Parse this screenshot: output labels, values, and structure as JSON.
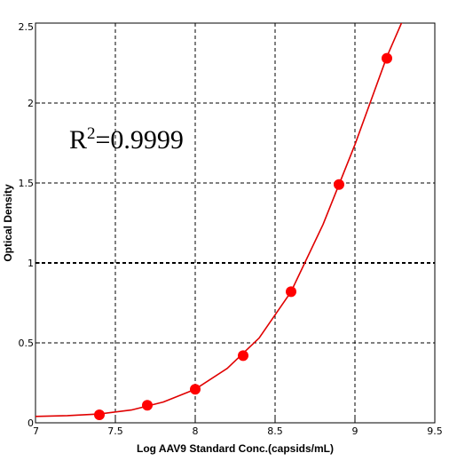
{
  "chart_data": {
    "type": "scatter",
    "xlabel": "Log AAV9 Standard Conc.(capsids/mL)",
    "ylabel": "Optical Density",
    "xlim": [
      7,
      9.5
    ],
    "ylim": [
      0,
      2.5
    ],
    "x_ticks": [
      "7",
      "7.5",
      "8",
      "8.5",
      "9",
      "9.5"
    ],
    "y_ticks": [
      "0",
      "0.5",
      "1",
      "1.5",
      "2",
      "2.5"
    ],
    "grid": true,
    "annotation": {
      "prefix": "R",
      "superscript": "2",
      "suffix": "=0.9999"
    },
    "colors": {
      "points": "#ff0000",
      "fit_line": "#e00000",
      "grid": "#000000"
    },
    "series": [
      {
        "type": "scatter",
        "x": [
          7.4,
          7.7,
          8.0,
          8.3,
          8.6,
          8.9,
          9.2
        ],
        "y": [
          0.05,
          0.11,
          0.21,
          0.42,
          0.82,
          1.49,
          2.28
        ]
      },
      {
        "type": "line",
        "x": [
          7.0,
          7.2,
          7.4,
          7.6,
          7.8,
          8.0,
          8.2,
          8.4,
          8.6,
          8.8,
          9.0,
          9.2,
          9.3
        ],
        "y": [
          0.04,
          0.045,
          0.055,
          0.08,
          0.13,
          0.21,
          0.34,
          0.53,
          0.82,
          1.24,
          1.74,
          2.29,
          2.52
        ]
      }
    ]
  }
}
